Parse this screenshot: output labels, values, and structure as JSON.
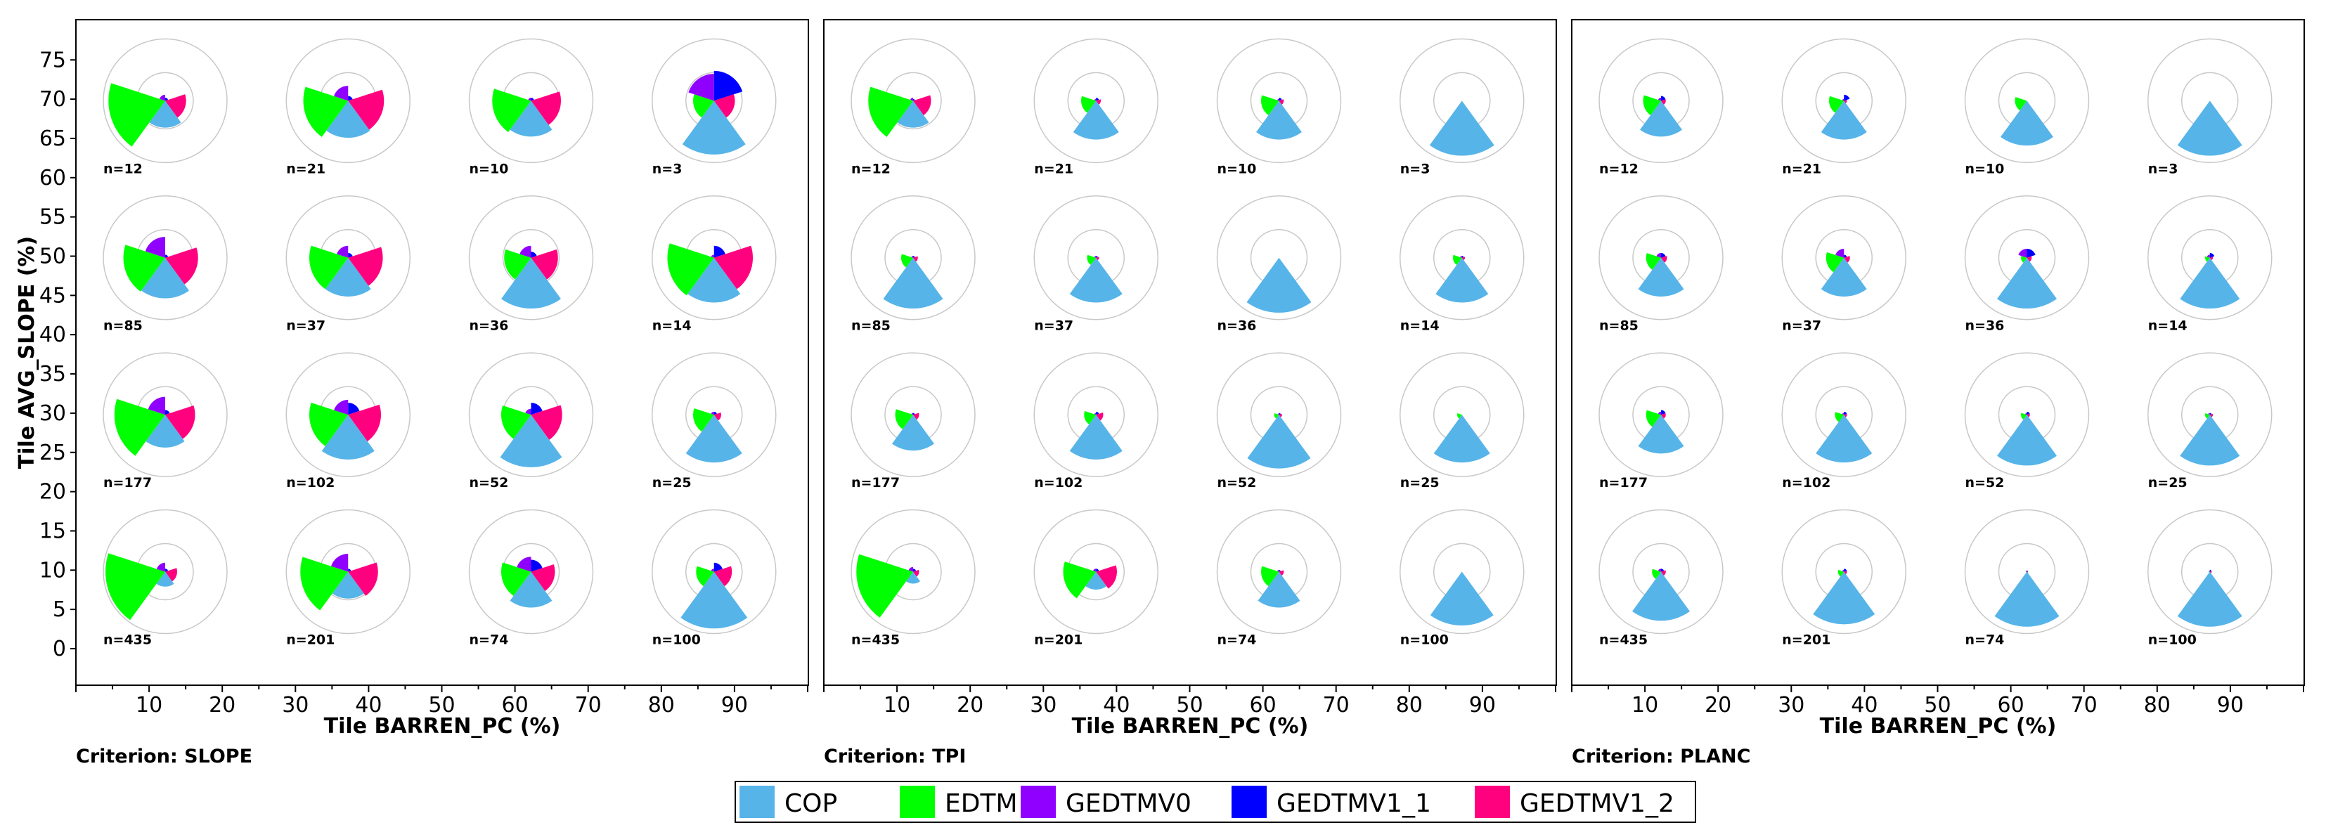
{
  "legend": [
    {
      "name": "COP",
      "color": "#56b4e9"
    },
    {
      "name": "EDTM",
      "color": "#00ff00"
    },
    {
      "name": "GEDTMV0",
      "color": "#8f00ff"
    },
    {
      "name": "GEDTMV1_1",
      "color": "#0000ff"
    },
    {
      "name": "GEDTMV1_2",
      "color": "#ff007f"
    }
  ],
  "chart_data": [
    {
      "type": "polar-wedge-grid",
      "criterion": "Criterion: SLOPE",
      "xlabel": "Tile BARREN_PC (%)",
      "ylabel": "Tile AVG_SLOPE (%)",
      "xticks": [
        10,
        20,
        30,
        40,
        50,
        60,
        70,
        80,
        90
      ],
      "yticks": [
        0,
        5,
        10,
        15,
        20,
        25,
        30,
        35,
        40,
        45,
        50,
        55,
        60,
        65,
        70,
        75
      ],
      "xlim": [
        0,
        100
      ],
      "ylim": [
        -5,
        80
      ],
      "series_order": [
        "COP",
        "EDTM",
        "GEDTMV0",
        "GEDTMV1_1",
        "GEDTMV1_2"
      ],
      "cells": [
        {
          "x": 10,
          "y": 70,
          "label": "n=12",
          "values": [
            0.45,
            0.95,
            0.1,
            0.05,
            0.35
          ]
        },
        {
          "x": 35,
          "y": 70,
          "label": "n=21",
          "values": [
            0.62,
            0.75,
            0.25,
            0.08,
            0.6
          ]
        },
        {
          "x": 60,
          "y": 70,
          "label": "n=10",
          "values": [
            0.6,
            0.65,
            0.05,
            0.05,
            0.5
          ]
        },
        {
          "x": 85,
          "y": 70,
          "label": "n=3",
          "values": [
            0.9,
            0.35,
            0.45,
            0.5,
            0.35
          ]
        },
        {
          "x": 10,
          "y": 50,
          "label": "n=85",
          "values": [
            0.68,
            0.7,
            0.35,
            0.05,
            0.55
          ]
        },
        {
          "x": 35,
          "y": 50,
          "label": "n=37",
          "values": [
            0.65,
            0.65,
            0.2,
            0.08,
            0.58
          ]
        },
        {
          "x": 60,
          "y": 50,
          "label": "n=36",
          "values": [
            0.85,
            0.45,
            0.2,
            0.1,
            0.45
          ]
        },
        {
          "x": 85,
          "y": 50,
          "label": "n=14",
          "values": [
            0.75,
            0.78,
            0.05,
            0.2,
            0.65
          ]
        },
        {
          "x": 10,
          "y": 30,
          "label": "n=177",
          "values": [
            0.55,
            0.85,
            0.3,
            0.08,
            0.5
          ]
        },
        {
          "x": 35,
          "y": 30,
          "label": "n=102",
          "values": [
            0.75,
            0.65,
            0.25,
            0.2,
            0.55
          ]
        },
        {
          "x": 60,
          "y": 30,
          "label": "n=52",
          "values": [
            0.88,
            0.5,
            0.1,
            0.2,
            0.52
          ]
        },
        {
          "x": 85,
          "y": 30,
          "label": "n=25",
          "values": [
            0.8,
            0.35,
            0.05,
            0.05,
            0.12
          ]
        },
        {
          "x": 10,
          "y": 10,
          "label": "n=435",
          "values": [
            0.25,
            1.0,
            0.15,
            0.05,
            0.2
          ]
        },
        {
          "x": 35,
          "y": 10,
          "label": "n=201",
          "values": [
            0.45,
            0.8,
            0.3,
            0.05,
            0.5
          ]
        },
        {
          "x": 60,
          "y": 10,
          "label": "n=74",
          "values": [
            0.6,
            0.5,
            0.25,
            0.2,
            0.4
          ]
        },
        {
          "x": 85,
          "y": 10,
          "label": "n=100",
          "values": [
            0.95,
            0.3,
            0.05,
            0.15,
            0.3
          ]
        }
      ]
    },
    {
      "type": "polar-wedge-grid",
      "criterion": "Criterion: TPI",
      "xlabel": "Tile BARREN_PC (%)",
      "ylabel": "",
      "xticks": [
        10,
        20,
        30,
        40,
        50,
        60,
        70,
        80,
        90
      ],
      "yticks": [],
      "xlim": [
        0,
        100
      ],
      "ylim": [
        -5,
        80
      ],
      "series_order": [
        "COP",
        "EDTM",
        "GEDTMV0",
        "GEDTMV1_1",
        "GEDTMV1_2"
      ],
      "cells": [
        {
          "x": 10,
          "y": 70,
          "label": "n=12",
          "values": [
            0.45,
            0.75,
            0.05,
            0.03,
            0.3
          ]
        },
        {
          "x": 35,
          "y": 70,
          "label": "n=21",
          "values": [
            0.65,
            0.25,
            0.03,
            0.05,
            0.08
          ]
        },
        {
          "x": 60,
          "y": 70,
          "label": "n=10",
          "values": [
            0.65,
            0.3,
            0.03,
            0.05,
            0.08
          ]
        },
        {
          "x": 85,
          "y": 70,
          "label": "n=3",
          "values": [
            0.92,
            0.0,
            0.0,
            0.0,
            0.0
          ]
        },
        {
          "x": 10,
          "y": 50,
          "label": "n=85",
          "values": [
            0.85,
            0.2,
            0.03,
            0.03,
            0.08
          ]
        },
        {
          "x": 35,
          "y": 50,
          "label": "n=37",
          "values": [
            0.75,
            0.15,
            0.03,
            0.03,
            0.05
          ]
        },
        {
          "x": 60,
          "y": 50,
          "label": "n=36",
          "values": [
            0.92,
            0.0,
            0.0,
            0.0,
            0.0
          ]
        },
        {
          "x": 85,
          "y": 50,
          "label": "n=14",
          "values": [
            0.75,
            0.15,
            0.03,
            0.03,
            0.05
          ]
        },
        {
          "x": 10,
          "y": 30,
          "label": "n=177",
          "values": [
            0.6,
            0.3,
            0.03,
            0.03,
            0.1
          ]
        },
        {
          "x": 35,
          "y": 30,
          "label": "n=102",
          "values": [
            0.75,
            0.2,
            0.03,
            0.05,
            0.12
          ]
        },
        {
          "x": 60,
          "y": 30,
          "label": "n=52",
          "values": [
            0.9,
            0.08,
            0.02,
            0.03,
            0.05
          ]
        },
        {
          "x": 85,
          "y": 30,
          "label": "n=25",
          "values": [
            0.8,
            0.08,
            0.0,
            0.0,
            0.0
          ]
        },
        {
          "x": 10,
          "y": 10,
          "label": "n=435",
          "values": [
            0.2,
            0.95,
            0.08,
            0.05,
            0.1
          ]
        },
        {
          "x": 35,
          "y": 10,
          "label": "n=201",
          "values": [
            0.3,
            0.55,
            0.05,
            0.05,
            0.35
          ]
        },
        {
          "x": 60,
          "y": 10,
          "label": "n=74",
          "values": [
            0.6,
            0.3,
            0.03,
            0.03,
            0.08
          ]
        },
        {
          "x": 85,
          "y": 10,
          "label": "n=100",
          "values": [
            0.9,
            0.0,
            0.0,
            0.0,
            0.0
          ]
        }
      ]
    },
    {
      "type": "polar-wedge-grid",
      "criterion": "Criterion: PLANC",
      "xlabel": "Tile BARREN_PC (%)",
      "ylabel": "",
      "xticks": [
        10,
        20,
        30,
        40,
        50,
        60,
        70,
        80,
        90
      ],
      "yticks": [],
      "xlim": [
        0,
        100
      ],
      "ylim": [
        -5,
        80
      ],
      "series_order": [
        "COP",
        "EDTM",
        "GEDTMV0",
        "GEDTMV1_1",
        "GEDTMV1_2"
      ],
      "cells": [
        {
          "x": 10,
          "y": 70,
          "label": "n=12",
          "values": [
            0.6,
            0.3,
            0.05,
            0.08,
            0.08
          ]
        },
        {
          "x": 35,
          "y": 70,
          "label": "n=21",
          "values": [
            0.65,
            0.25,
            0.03,
            0.1,
            0.05
          ]
        },
        {
          "x": 60,
          "y": 70,
          "label": "n=10",
          "values": [
            0.75,
            0.2,
            0.0,
            0.0,
            0.0
          ]
        },
        {
          "x": 85,
          "y": 70,
          "label": "n=3",
          "values": [
            0.92,
            0.0,
            0.0,
            0.0,
            0.0
          ]
        },
        {
          "x": 10,
          "y": 50,
          "label": "n=85",
          "values": [
            0.65,
            0.25,
            0.08,
            0.08,
            0.1
          ]
        },
        {
          "x": 35,
          "y": 50,
          "label": "n=37",
          "values": [
            0.65,
            0.3,
            0.15,
            0.05,
            0.1
          ]
        },
        {
          "x": 60,
          "y": 50,
          "label": "n=36",
          "values": [
            0.85,
            0.1,
            0.15,
            0.15,
            0.08
          ]
        },
        {
          "x": 85,
          "y": 50,
          "label": "n=14",
          "values": [
            0.85,
            0.08,
            0.05,
            0.08,
            0.05
          ]
        },
        {
          "x": 10,
          "y": 30,
          "label": "n=177",
          "values": [
            0.65,
            0.25,
            0.05,
            0.08,
            0.08
          ]
        },
        {
          "x": 35,
          "y": 30,
          "label": "n=102",
          "values": [
            0.8,
            0.15,
            0.03,
            0.05,
            0.05
          ]
        },
        {
          "x": 60,
          "y": 30,
          "label": "n=52",
          "values": [
            0.85,
            0.1,
            0.03,
            0.05,
            0.05
          ]
        },
        {
          "x": 85,
          "y": 30,
          "label": "n=25",
          "values": [
            0.85,
            0.08,
            0.03,
            0.03,
            0.05
          ]
        },
        {
          "x": 10,
          "y": 10,
          "label": "n=435",
          "values": [
            0.82,
            0.15,
            0.05,
            0.05,
            0.08
          ]
        },
        {
          "x": 35,
          "y": 10,
          "label": "n=201",
          "values": [
            0.88,
            0.1,
            0.03,
            0.05,
            0.05
          ]
        },
        {
          "x": 60,
          "y": 10,
          "label": "n=74",
          "values": [
            0.92,
            0.02,
            0.02,
            0.02,
            0.02
          ]
        },
        {
          "x": 85,
          "y": 10,
          "label": "n=100",
          "values": [
            0.92,
            0.02,
            0.02,
            0.03,
            0.03
          ]
        }
      ]
    }
  ]
}
